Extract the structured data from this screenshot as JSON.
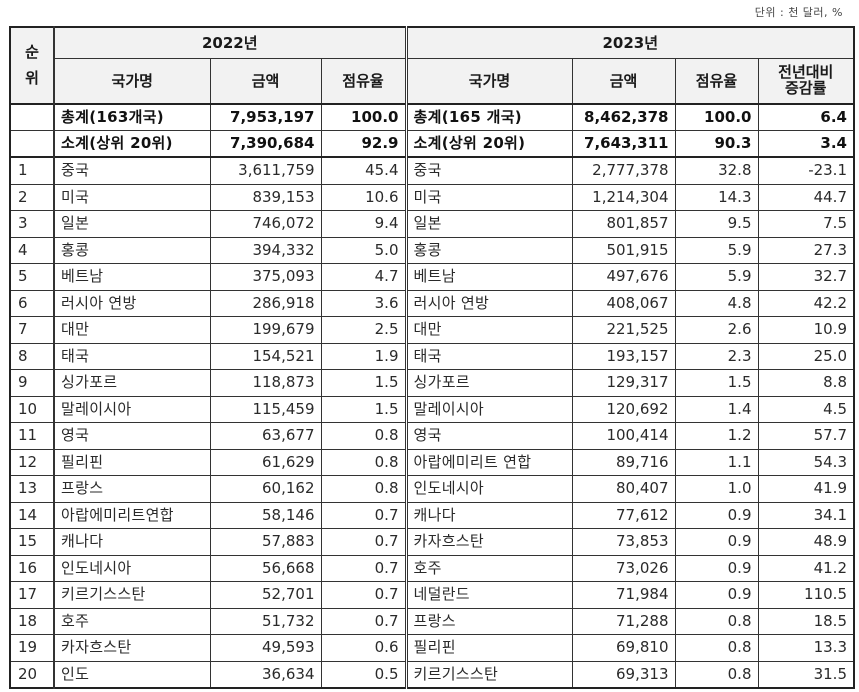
{
  "unit_note": "단위 : 천 달러, %",
  "header": {
    "rank_label": "순\n위",
    "rank_label_top": "순",
    "rank_label_bottom": "위",
    "year_2022": "2022년",
    "year_2023": "2023년",
    "col_country": "국가명",
    "col_amount": "금액",
    "col_share": "점유율",
    "col_change_line1": "전년대비",
    "col_change_line2": "증감률"
  },
  "summary_rows": [
    {
      "name_2022": "총계(163개국)",
      "amount_2022": "7,953,197",
      "share_2022": "100.0",
      "name_2023": "총계(165 개국)",
      "amount_2023": "8,462,378",
      "share_2023": "100.0",
      "change_2023": "6.4"
    },
    {
      "name_2022": "소계(상위 20위)",
      "amount_2022": "7,390,684",
      "share_2022": "92.9",
      "name_2023": "소계(상위 20위)",
      "amount_2023": "7,643,311",
      "share_2023": "90.3",
      "change_2023": "3.4"
    }
  ],
  "rows": [
    {
      "rank": "1",
      "name_2022": "중국",
      "amount_2022": "3,611,759",
      "share_2022": "45.4",
      "name_2023": "중국",
      "amount_2023": "2,777,378",
      "share_2023": "32.8",
      "change_2023": "-23.1"
    },
    {
      "rank": "2",
      "name_2022": "미국",
      "amount_2022": "839,153",
      "share_2022": "10.6",
      "name_2023": "미국",
      "amount_2023": "1,214,304",
      "share_2023": "14.3",
      "change_2023": "44.7"
    },
    {
      "rank": "3",
      "name_2022": "일본",
      "amount_2022": "746,072",
      "share_2022": "9.4",
      "name_2023": "일본",
      "amount_2023": "801,857",
      "share_2023": "9.5",
      "change_2023": "7.5"
    },
    {
      "rank": "4",
      "name_2022": "홍콩",
      "amount_2022": "394,332",
      "share_2022": "5.0",
      "name_2023": "홍콩",
      "amount_2023": "501,915",
      "share_2023": "5.9",
      "change_2023": "27.3"
    },
    {
      "rank": "5",
      "name_2022": "베트남",
      "amount_2022": "375,093",
      "share_2022": "4.7",
      "name_2023": "베트남",
      "amount_2023": "497,676",
      "share_2023": "5.9",
      "change_2023": "32.7"
    },
    {
      "rank": "6",
      "name_2022": "러시아 연방",
      "amount_2022": "286,918",
      "share_2022": "3.6",
      "name_2023": "러시아 연방",
      "amount_2023": "408,067",
      "share_2023": "4.8",
      "change_2023": "42.2"
    },
    {
      "rank": "7",
      "name_2022": "대만",
      "amount_2022": "199,679",
      "share_2022": "2.5",
      "name_2023": "대만",
      "amount_2023": "221,525",
      "share_2023": "2.6",
      "change_2023": "10.9"
    },
    {
      "rank": "8",
      "name_2022": "태국",
      "amount_2022": "154,521",
      "share_2022": "1.9",
      "name_2023": "태국",
      "amount_2023": "193,157",
      "share_2023": "2.3",
      "change_2023": "25.0"
    },
    {
      "rank": "9",
      "name_2022": "싱가포르",
      "amount_2022": "118,873",
      "share_2022": "1.5",
      "name_2023": "싱가포르",
      "amount_2023": "129,317",
      "share_2023": "1.5",
      "change_2023": "8.8"
    },
    {
      "rank": "10",
      "name_2022": "말레이시아",
      "amount_2022": "115,459",
      "share_2022": "1.5",
      "name_2023": "말레이시아",
      "amount_2023": "120,692",
      "share_2023": "1.4",
      "change_2023": "4.5"
    },
    {
      "rank": "11",
      "name_2022": "영국",
      "amount_2022": "63,677",
      "share_2022": "0.8",
      "name_2023": "영국",
      "amount_2023": "100,414",
      "share_2023": "1.2",
      "change_2023": "57.7"
    },
    {
      "rank": "12",
      "name_2022": "필리핀",
      "amount_2022": "61,629",
      "share_2022": "0.8",
      "name_2023": "아랍에미리트 연합",
      "amount_2023": "89,716",
      "share_2023": "1.1",
      "change_2023": "54.3"
    },
    {
      "rank": "13",
      "name_2022": "프랑스",
      "amount_2022": "60,162",
      "share_2022": "0.8",
      "name_2023": "인도네시아",
      "amount_2023": "80,407",
      "share_2023": "1.0",
      "change_2023": "41.9"
    },
    {
      "rank": "14",
      "name_2022": "아랍에미리트연합",
      "amount_2022": "58,146",
      "share_2022": "0.7",
      "name_2023": "캐나다",
      "amount_2023": "77,612",
      "share_2023": "0.9",
      "change_2023": "34.1"
    },
    {
      "rank": "15",
      "name_2022": "캐나다",
      "amount_2022": "57,883",
      "share_2022": "0.7",
      "name_2023": "카자흐스탄",
      "amount_2023": "73,853",
      "share_2023": "0.9",
      "change_2023": "48.9"
    },
    {
      "rank": "16",
      "name_2022": "인도네시아",
      "amount_2022": "56,668",
      "share_2022": "0.7",
      "name_2023": "호주",
      "amount_2023": "73,026",
      "share_2023": "0.9",
      "change_2023": "41.2"
    },
    {
      "rank": "17",
      "name_2022": "키르기스스탄",
      "amount_2022": "52,701",
      "share_2022": "0.7",
      "name_2023": "네덜란드",
      "amount_2023": "71,984",
      "share_2023": "0.9",
      "change_2023": "110.5"
    },
    {
      "rank": "18",
      "name_2022": "호주",
      "amount_2022": "51,732",
      "share_2022": "0.7",
      "name_2023": "프랑스",
      "amount_2023": "71,288",
      "share_2023": "0.8",
      "change_2023": "18.5"
    },
    {
      "rank": "19",
      "name_2022": "카자흐스탄",
      "amount_2022": "49,593",
      "share_2022": "0.6",
      "name_2023": "필리핀",
      "amount_2023": "69,810",
      "share_2023": "0.8",
      "change_2023": "13.3"
    },
    {
      "rank": "20",
      "name_2022": "인도",
      "amount_2022": "36,634",
      "share_2022": "0.5",
      "name_2023": "키르기스스탄",
      "amount_2023": "69,313",
      "share_2023": "0.8",
      "change_2023": "31.5"
    }
  ]
}
